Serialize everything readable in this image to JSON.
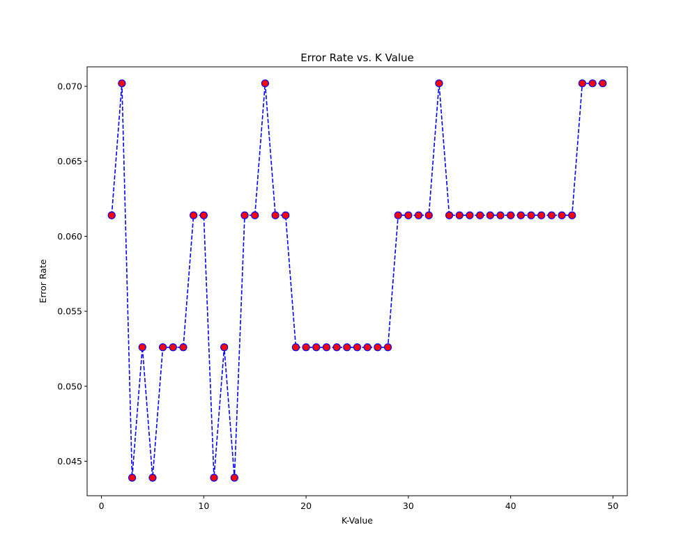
{
  "chart_data": {
    "type": "line",
    "title": "Error Rate vs. K Value",
    "xlabel": "K-Value",
    "ylabel": "Error Rate",
    "xlim": [
      -1.4,
      51.4
    ],
    "ylim": [
      0.0427,
      0.0713
    ],
    "xticks": [
      0,
      10,
      20,
      30,
      40,
      50
    ],
    "xtick_labels": [
      "0",
      "10",
      "20",
      "30",
      "40",
      "50"
    ],
    "yticks": [
      0.045,
      0.05,
      0.055,
      0.06,
      0.065,
      0.07
    ],
    "ytick_labels": [
      "0.045",
      "0.050",
      "0.055",
      "0.060",
      "0.065",
      "0.070"
    ],
    "grid": false,
    "series": [
      {
        "line_color": "#0000ff",
        "line_style": "dashed",
        "marker": "circle",
        "marker_face_color": "#ff0000",
        "marker_edge_color": "#0000ff",
        "x": [
          1,
          2,
          3,
          4,
          5,
          6,
          7,
          8,
          9,
          10,
          11,
          12,
          13,
          14,
          15,
          16,
          17,
          18,
          19,
          20,
          21,
          22,
          23,
          24,
          25,
          26,
          27,
          28,
          29,
          30,
          31,
          32,
          33,
          34,
          35,
          36,
          37,
          38,
          39,
          40,
          41,
          42,
          43,
          44,
          45,
          46,
          47,
          48,
          49
        ],
        "y": [
          0.0614,
          0.0702,
          0.0439,
          0.0526,
          0.0439,
          0.0526,
          0.0526,
          0.0526,
          0.0614,
          0.0614,
          0.0439,
          0.0526,
          0.0439,
          0.0614,
          0.0614,
          0.0702,
          0.0614,
          0.0614,
          0.0526,
          0.0526,
          0.0526,
          0.0526,
          0.0526,
          0.0526,
          0.0526,
          0.0526,
          0.0526,
          0.0526,
          0.0614,
          0.0614,
          0.0614,
          0.0614,
          0.0702,
          0.0614,
          0.0614,
          0.0614,
          0.0614,
          0.0614,
          0.0614,
          0.0614,
          0.0614,
          0.0614,
          0.0614,
          0.0614,
          0.0614,
          0.0614,
          0.0702,
          0.0702,
          0.0702
        ]
      }
    ]
  }
}
